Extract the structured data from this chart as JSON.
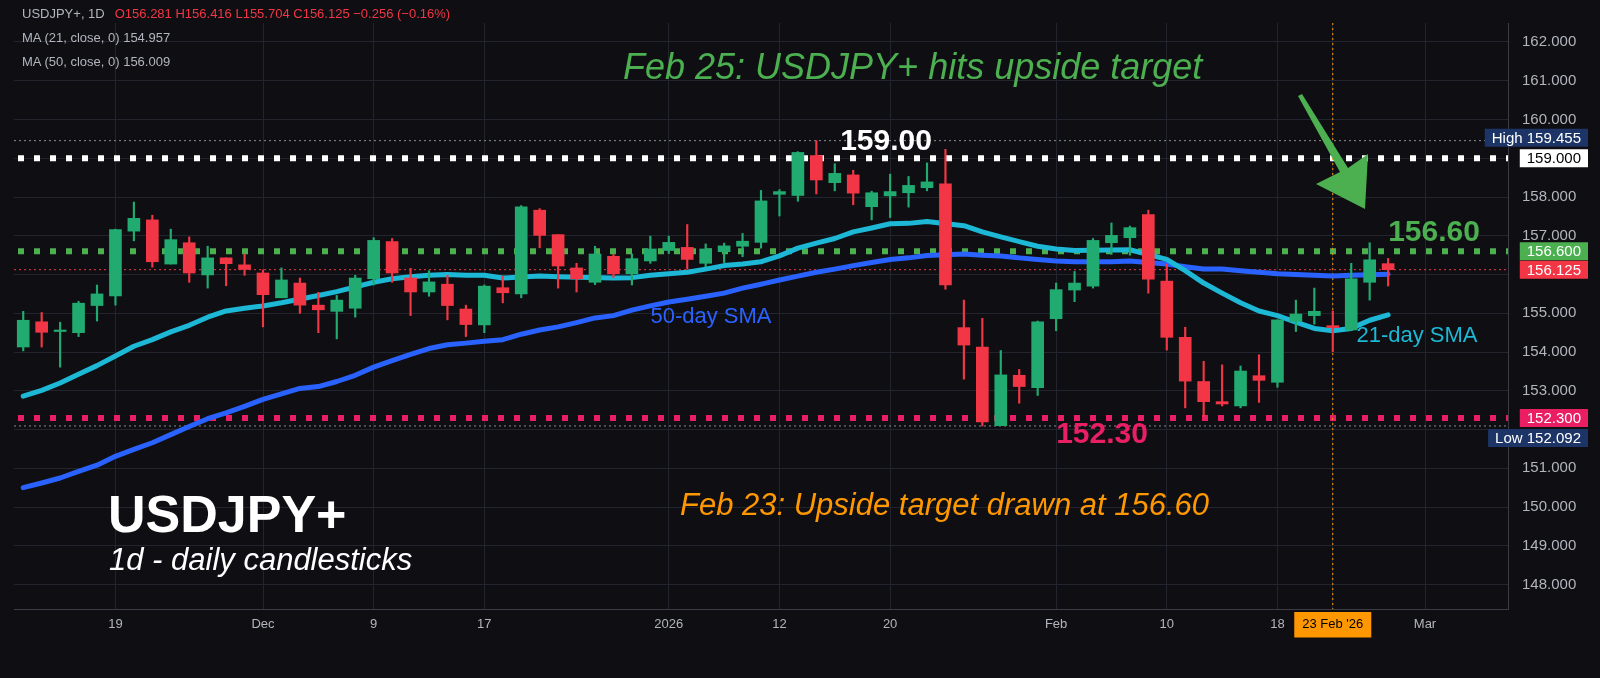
{
  "chart_data": {
    "type": "candlestick",
    "grid": true,
    "legend": false,
    "categories": [
      null,
      null,
      null,
      null,
      null,
      "19",
      null,
      null,
      null,
      null,
      null,
      null,
      null,
      "Dec",
      null,
      null,
      null,
      null,
      null,
      "9",
      null,
      null,
      null,
      null,
      null,
      "17",
      null,
      null,
      null,
      null,
      null,
      null,
      null,
      null,
      null,
      "2026",
      null,
      null,
      null,
      null,
      null,
      "12",
      null,
      null,
      null,
      null,
      null,
      "20",
      null,
      null,
      null,
      null,
      null,
      null,
      null,
      null,
      "Feb",
      null,
      null,
      null,
      null,
      null,
      "10",
      null,
      null,
      null,
      null,
      null,
      "18",
      null,
      null,
      "23 Feb '26",
      null,
      null,
      null,
      null,
      "Mar",
      null,
      null,
      null,
      null
    ],
    "ohlc": [
      [
        154.13,
        155.05,
        154.03,
        154.82
      ],
      [
        154.78,
        155.02,
        154.13,
        154.51
      ],
      [
        154.53,
        154.77,
        153.61,
        154.55
      ],
      [
        154.5,
        155.31,
        154.4,
        155.26
      ],
      [
        155.2,
        155.73,
        154.8,
        155.5
      ],
      [
        155.45,
        157.17,
        155.21,
        157.16
      ],
      [
        157.12,
        157.87,
        156.87,
        157.45
      ],
      [
        157.41,
        157.53,
        156.19,
        156.33
      ],
      [
        156.27,
        157.17,
        156.27,
        156.9
      ],
      [
        156.82,
        156.97,
        155.8,
        156.04
      ],
      [
        155.99,
        156.73,
        155.65,
        156.43
      ],
      [
        156.43,
        156.43,
        155.71,
        156.28
      ],
      [
        156.25,
        156.53,
        155.98,
        156.13
      ],
      [
        156.04,
        156.12,
        154.65,
        155.48
      ],
      [
        155.4,
        156.17,
        155.4,
        155.86
      ],
      [
        155.78,
        155.91,
        155.0,
        155.21
      ],
      [
        155.21,
        155.54,
        154.5,
        155.09
      ],
      [
        155.05,
        155.46,
        154.34,
        155.34
      ],
      [
        155.13,
        155.98,
        154.9,
        155.91
      ],
      [
        155.89,
        156.95,
        155.73,
        156.88
      ],
      [
        156.85,
        156.93,
        155.8,
        156.04
      ],
      [
        155.91,
        156.16,
        154.94,
        155.55
      ],
      [
        155.55,
        156.1,
        155.44,
        155.81
      ],
      [
        155.75,
        155.98,
        154.83,
        155.2
      ],
      [
        155.11,
        155.21,
        154.4,
        154.71
      ],
      [
        154.7,
        155.73,
        154.5,
        155.7
      ],
      [
        155.66,
        155.96,
        155.27,
        155.53
      ],
      [
        155.5,
        157.78,
        155.4,
        157.75
      ],
      [
        157.66,
        157.7,
        156.69,
        157.01
      ],
      [
        157.03,
        157.03,
        155.65,
        156.22
      ],
      [
        156.17,
        156.29,
        155.55,
        155.89
      ],
      [
        155.8,
        156.73,
        155.74,
        156.53
      ],
      [
        156.47,
        156.52,
        155.92,
        156.02
      ],
      [
        156.02,
        156.53,
        155.73,
        156.41
      ],
      [
        156.35,
        156.99,
        156.29,
        156.66
      ],
      [
        156.62,
        156.99,
        156.54,
        156.83
      ],
      [
        156.7,
        157.29,
        156.14,
        156.39
      ],
      [
        156.29,
        156.79,
        156.2,
        156.66
      ],
      [
        156.59,
        156.81,
        156.31,
        156.74
      ],
      [
        156.73,
        157.06,
        156.46,
        156.86
      ],
      [
        156.83,
        158.17,
        156.68,
        157.9
      ],
      [
        158.07,
        158.19,
        157.51,
        158.14
      ],
      [
        158.04,
        159.17,
        157.89,
        159.15
      ],
      [
        159.07,
        159.455,
        158.08,
        158.44
      ],
      [
        158.37,
        158.86,
        158.16,
        158.61
      ],
      [
        158.57,
        158.69,
        157.8,
        158.1
      ],
      [
        157.75,
        158.15,
        157.41,
        158.11
      ],
      [
        158.03,
        158.59,
        157.47,
        158.14
      ],
      [
        158.11,
        158.53,
        157.74,
        158.3
      ],
      [
        158.24,
        158.88,
        158.16,
        158.39
      ],
      [
        158.34,
        159.23,
        155.62,
        155.73
      ],
      [
        154.63,
        155.34,
        153.3,
        154.18
      ],
      [
        154.13,
        154.87,
        152.092,
        152.2
      ],
      [
        152.1,
        154.04,
        152.1,
        153.41
      ],
      [
        153.4,
        153.55,
        152.68,
        153.11
      ],
      [
        153.08,
        154.8,
        152.88,
        154.78
      ],
      [
        154.86,
        155.78,
        154.55,
        155.61
      ],
      [
        155.6,
        156.08,
        155.3,
        155.78
      ],
      [
        155.7,
        156.93,
        155.65,
        156.88
      ],
      [
        156.82,
        157.33,
        156.52,
        157.01
      ],
      [
        156.95,
        157.25,
        156.5,
        157.21
      ],
      [
        157.55,
        157.66,
        155.52,
        155.88
      ],
      [
        155.83,
        156.27,
        154.05,
        154.38
      ],
      [
        154.38,
        154.64,
        152.56,
        153.25
      ],
      [
        153.24,
        153.76,
        152.33,
        152.72
      ],
      [
        152.72,
        153.67,
        152.61,
        152.66
      ],
      [
        152.61,
        153.64,
        152.56,
        153.51
      ],
      [
        153.39,
        153.93,
        152.7,
        153.27
      ],
      [
        153.22,
        154.83,
        153.09,
        154.83
      ],
      [
        154.79,
        155.34,
        154.53,
        154.98
      ],
      [
        154.94,
        155.65,
        154.72,
        155.05
      ],
      [
        154.68,
        155.06,
        154.01,
        154.63
      ],
      [
        154.57,
        156.29,
        154.55,
        155.89
      ],
      [
        155.8,
        156.82,
        155.34,
        156.38
      ],
      [
        156.281,
        156.416,
        155.704,
        156.125
      ],
      null,
      null,
      null,
      null,
      null,
      null
    ],
    "series": [
      {
        "name": "21-day SMA",
        "type": "line",
        "color": "#1cb8d6",
        "values": [
          152.86,
          153.01,
          153.2,
          153.43,
          153.65,
          153.9,
          154.15,
          154.32,
          154.52,
          154.69,
          154.9,
          155.06,
          155.13,
          155.19,
          155.27,
          null,
          155.46,
          155.56,
          null,
          155.8,
          155.89,
          155.94,
          155.98,
          156.0,
          155.98,
          155.98,
          155.91,
          null,
          155.96,
          155.94,
          null,
          null,
          155.91,
          155.92,
          155.98,
          156.02,
          156.06,
          156.14,
          156.23,
          156.27,
          156.33,
          156.48,
          156.68,
          156.81,
          156.93,
          157.1,
          157.2,
          157.31,
          157.32,
          157.37,
          null,
          157.26,
          157.1,
          156.97,
          156.85,
          156.73,
          156.66,
          156.62,
          null,
          156.63,
          156.64,
          null,
          156.39,
          156.1,
          155.78,
          155.52,
          155.27,
          155.06,
          154.94,
          154.77,
          154.61,
          154.55,
          154.61,
          154.82,
          154.96,
          null,
          null,
          null,
          null,
          null,
          null
        ]
      },
      {
        "name": "50-day SMA",
        "type": "line",
        "color": "#2962ff",
        "values": [
          150.5,
          150.62,
          150.75,
          150.92,
          151.08,
          151.31,
          151.49,
          151.66,
          151.87,
          152.08,
          152.28,
          152.43,
          152.6,
          152.78,
          152.92,
          153.06,
          153.11,
          153.24,
          153.4,
          153.61,
          153.78,
          153.94,
          154.09,
          154.19,
          154.23,
          154.28,
          154.32,
          154.46,
          154.57,
          154.65,
          154.76,
          154.88,
          154.94,
          155.08,
          155.19,
          155.29,
          155.36,
          155.44,
          155.52,
          155.65,
          155.75,
          155.86,
          155.96,
          156.06,
          156.14,
          156.23,
          156.31,
          156.39,
          156.43,
          156.49,
          null,
          156.53,
          156.5,
          156.48,
          156.43,
          156.39,
          156.35,
          156.33,
          null,
          156.33,
          156.35,
          null,
          156.27,
          156.2,
          156.14,
          156.14,
          156.1,
          156.06,
          156.02,
          156.0,
          155.98,
          155.96,
          155.98,
          null,
          156.01,
          null,
          null,
          null,
          null,
          null,
          null
        ]
      }
    ],
    "ylim": [
      147.37,
      162.49
    ],
    "yticks": [
      {
        "value": 148,
        "label": "148.000"
      },
      {
        "value": 149,
        "label": "149.000"
      },
      {
        "value": 150,
        "label": "150.000"
      },
      {
        "value": 151,
        "label": "151.000"
      },
      {
        "value": 152,
        "label": null
      },
      {
        "value": 153,
        "label": "153.000"
      },
      {
        "value": 154,
        "label": "154.000"
      },
      {
        "value": 155,
        "label": "155.000"
      },
      {
        "value": 156,
        "label": null
      },
      {
        "value": 157,
        "label": "157.000"
      },
      {
        "value": 158,
        "label": "158.000"
      },
      {
        "value": 159,
        "label": null
      },
      {
        "value": 160,
        "label": "160.000"
      },
      {
        "value": 161,
        "label": "161.000"
      },
      {
        "value": 162,
        "label": "162.000"
      }
    ],
    "ref_lines": [
      {
        "axis": "y",
        "value": 159,
        "label": "159.000",
        "color": "#ffffff",
        "line_style": "dotted"
      },
      {
        "axis": "y",
        "value": 156.6,
        "label": "156.600",
        "color": "#4caf50",
        "line_style": "dotted"
      },
      {
        "axis": "y",
        "value": 152.3,
        "label": "152.300",
        "color": "#e91e63",
        "line_style": "dotted"
      },
      {
        "axis": "y",
        "value": 156.125,
        "label": "156.125",
        "color": "#f23645",
        "line_style": "dotted"
      },
      {
        "axis": "y",
        "value": 159.455,
        "label": "High 159.455",
        "color": "#8a8d96",
        "line_style": "dotted"
      },
      {
        "axis": "y",
        "value": 152.092,
        "label": "Low 152.092",
        "color": "#8a8d96",
        "line_style": "dotted"
      },
      {
        "axis": "x",
        "value": "23 Feb '26",
        "color": "#ff9800",
        "line_style": "dotted"
      }
    ],
    "annotations": [
      "USDJPY+, 1D",
      "O156.281 H156.416 L155.704 C156.125 −0.256 (−0.16%)",
      "MA (21, close, 0) 154.957",
      "MA (50, close, 0) 156.009",
      "Feb 25: USDJPY+ hits upside target",
      {
        "text": "159.00",
        "y": 159
      },
      {
        "text": "156.60",
        "y": 156.6
      },
      {
        "text": "152.30",
        "y": 152.3
      },
      "USDJPY+",
      "1d - daily candlesticks",
      "Feb 23: Upside target drawn at 156.60"
    ]
  }
}
